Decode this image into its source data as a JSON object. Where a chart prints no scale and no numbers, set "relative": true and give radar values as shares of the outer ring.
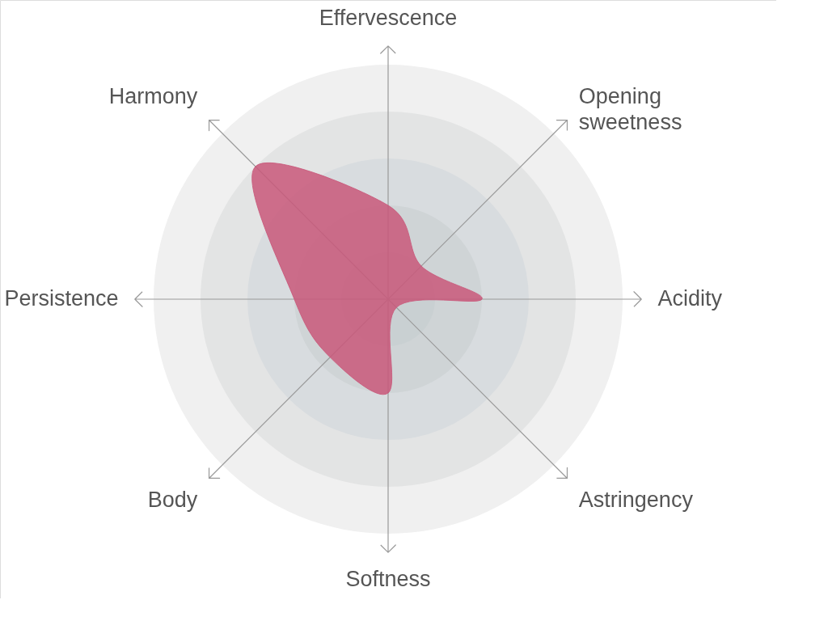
{
  "chart_data": {
    "type": "radar",
    "relative": true,
    "categories": [
      "Effervescence",
      "Opening sweetness",
      "Acidity",
      "Astringency",
      "Softness",
      "Body",
      "Persistence",
      "Harmony"
    ],
    "series": [
      {
        "color": "#c9587a",
        "values": [
          0.4,
          0.2,
          0.4,
          0.05,
          0.4,
          0.35,
          0.4,
          0.8
        ]
      }
    ]
  }
}
